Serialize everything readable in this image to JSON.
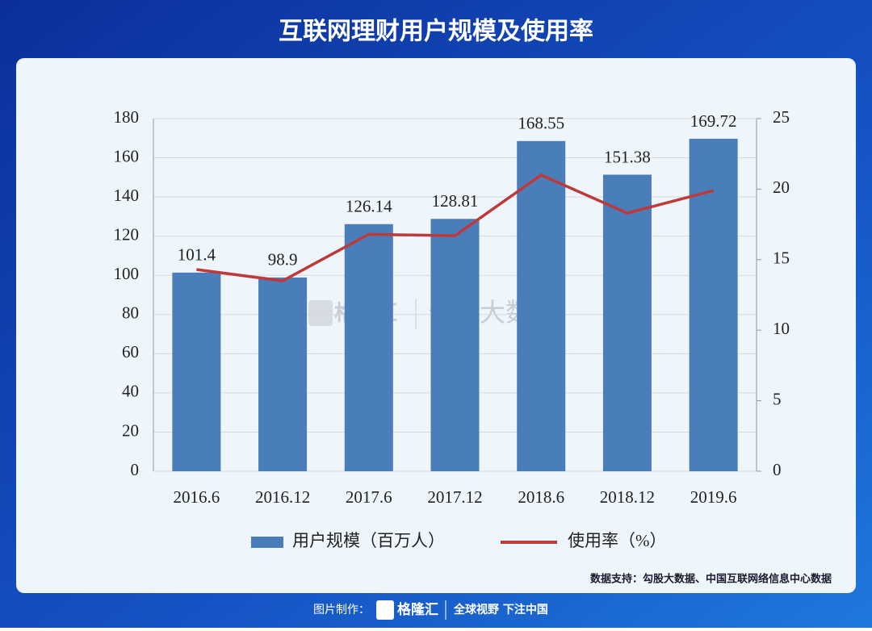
{
  "header": {
    "title": "互联网理财用户规模及使用率"
  },
  "chart_data": {
    "type": "bar",
    "categories": [
      "2016.6",
      "2016.12",
      "2017.6",
      "2017.12",
      "2018.6",
      "2018.12",
      "2019.6"
    ],
    "series": [
      {
        "name": "用户规模（百万人）",
        "type": "bar",
        "color": "#4a7ebb",
        "values": [
          101.4,
          98.9,
          126.14,
          128.81,
          168.55,
          151.38,
          169.72
        ]
      },
      {
        "name": "使用率（%）",
        "type": "line",
        "axis": "y2",
        "color": "#be3a3a",
        "values": [
          14.3,
          13.5,
          16.8,
          16.7,
          21.0,
          18.3,
          19.9
        ]
      }
    ],
    "ylim": [
      0,
      180
    ],
    "yticks": [
      0,
      20,
      40,
      60,
      80,
      100,
      120,
      140,
      160,
      180
    ],
    "y2lim": [
      0,
      25
    ],
    "y2ticks": [
      0,
      5,
      10,
      15,
      20,
      25
    ],
    "grid": true,
    "legend": "bottom"
  },
  "watermark": [
    "格隆汇",
    "勾股大数据"
  ],
  "source": "数据支持：勾股大数据、中国互联网络信息中心数据",
  "footer": {
    "label": "图片制作：",
    "logo": "格隆汇",
    "slogan": "全球视野 下注中国"
  }
}
